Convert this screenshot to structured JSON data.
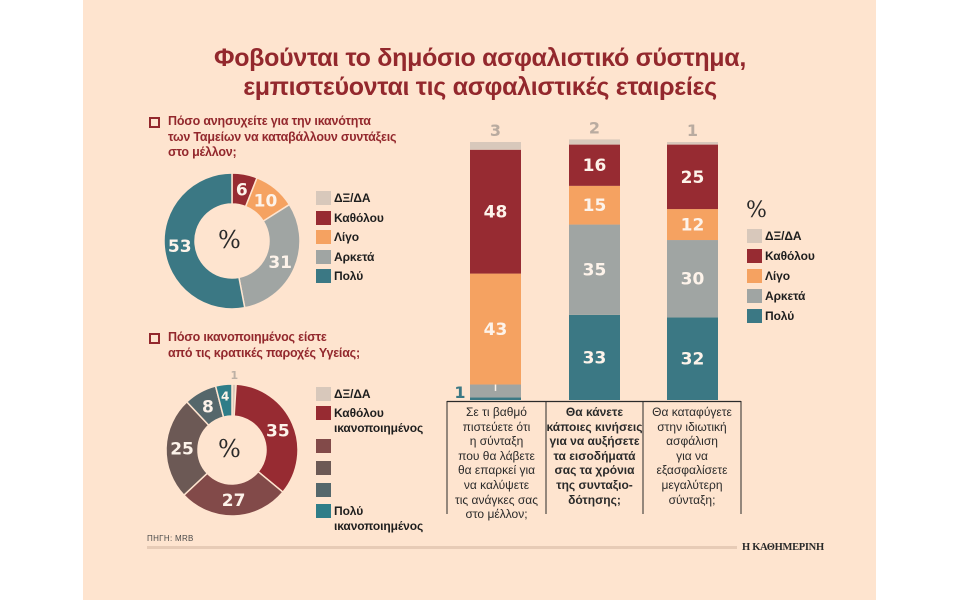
{
  "title_line1": "Φοβούνται το δημόσιο ασφαλιστικό σύστημα,",
  "title_line2": "εμπιστεύονται τις ασφαλιστικές εταιρείες",
  "source": "ΠΗΓΗ: MRB",
  "brand": "Η ΚΑΘΗΜΕΡΙΝΗ",
  "colors": {
    "dk_da": "#d8c8bb",
    "katholou": "#972b32",
    "ligo": "#f5a261",
    "arketa": "#a0a5a3",
    "poly": "#3b7884",
    "health_2": "#824a49",
    "health_3": "#6c5955",
    "health_4": "#55676b",
    "health_5": "#2f7d88"
  },
  "chart_data": [
    {
      "type": "pie",
      "variant": "donut",
      "title_lines": [
        "Πόσο ανησυχείτε για την ικανότητα",
        "των Ταμείων να καταβάλλουν συντάξεις",
        "στο μέλλον;"
      ],
      "center_label": "%",
      "slices": [
        {
          "label": "ΔΞ/ΔΑ",
          "value": 0,
          "color_key": "dk_da",
          "show_value": false
        },
        {
          "label": "Καθόλου",
          "value": 6,
          "color_key": "katholou",
          "show_value": true
        },
        {
          "label": "Λίγο",
          "value": 10,
          "color_key": "ligo",
          "show_value": true
        },
        {
          "label": "Αρκετά",
          "value": 31,
          "color_key": "arketa",
          "show_value": true
        },
        {
          "label": "Πολύ",
          "value": 53,
          "color_key": "poly",
          "show_value": true
        }
      ],
      "legend": [
        "ΔΞ/ΔΑ",
        "Καθόλου",
        "Λίγο",
        "Αρκετά",
        "Πολύ"
      ],
      "legend_placement": "right"
    },
    {
      "type": "pie",
      "variant": "donut",
      "title_lines": [
        "Πόσο ικανοποιημένος είστε",
        "από τις κρατικές παροχές Υγείας;"
      ],
      "center_label": "%",
      "slices": [
        {
          "label": "ΔΞ/ΔΑ",
          "value": 1,
          "color_key": "dk_da",
          "show_value": true
        },
        {
          "label": "Καθόλου ικανοποιημένος",
          "value": 35,
          "color_key": "katholou",
          "show_value": true
        },
        {
          "label": "",
          "value": 27,
          "color_key": "health_2",
          "show_value": true
        },
        {
          "label": "",
          "value": 25,
          "color_key": "health_3",
          "show_value": true
        },
        {
          "label": "",
          "value": 8,
          "color_key": "health_4",
          "show_value": true
        },
        {
          "label": "Πολύ ικανοποιημένος",
          "value": 4,
          "color_key": "health_5",
          "show_value": true
        }
      ],
      "legend": [
        {
          "lines": [
            "ΔΞ/ΔΑ"
          ],
          "color_key": "dk_da"
        },
        {
          "lines": [
            "Καθόλου",
            "ικανοποιημένος"
          ],
          "color_key": "katholou"
        },
        {
          "lines": [],
          "color_key": "health_2"
        },
        {
          "lines": [],
          "color_key": "health_3"
        },
        {
          "lines": [],
          "color_key": "health_4"
        },
        {
          "lines": [
            "Πολύ",
            "ικανοποιημένος"
          ],
          "color_key": "health_5"
        }
      ],
      "legend_placement": "right"
    },
    {
      "type": "bar",
      "stacked": true,
      "unit_label": "%",
      "categories": [
        {
          "lines": [
            "Σε τι βαθμό",
            "πιστεύετε ότι",
            "η σύνταξη",
            "που θα λάβετε",
            "θα επαρκεί για",
            "να καλύψετε",
            "τις ανάγκες σας",
            "στο μέλλον;"
          ],
          "bold": false
        },
        {
          "lines": [
            "Θα κάνετε",
            "κάποιες κινήσεις",
            "για να αυξήσετε",
            "τα εισοδήματά",
            "σας τα χρόνια",
            "της συνταξιο-",
            "δότησης;"
          ],
          "bold": true
        },
        {
          "lines": [
            "Θα καταφύγετε",
            "στην ιδιωτική",
            "ασφάλιση",
            "για να",
            "εξασφαλίσετε",
            "μεγαλύτερη",
            "σύνταξη;"
          ],
          "bold": false
        }
      ],
      "series": [
        {
          "name": "Πολύ",
          "color_key": "poly",
          "values": [
            1,
            33,
            32
          ]
        },
        {
          "name": "Αρκετά",
          "color_key": "arketa",
          "values": [
            5,
            35,
            30
          ]
        },
        {
          "name": "Λίγο",
          "color_key": "ligo",
          "values": [
            43,
            15,
            12
          ]
        },
        {
          "name": "Καθόλου",
          "color_key": "katholou",
          "values": [
            48,
            16,
            25
          ]
        },
        {
          "name": "ΔΞ/ΔΑ",
          "color_key": "dk_da",
          "values": [
            3,
            2,
            1
          ]
        }
      ],
      "legend": [
        "ΔΞ/ΔΑ",
        "Καθόλου",
        "Λίγο",
        "Αρκετά",
        "Πολύ"
      ],
      "legend_placement": "right",
      "ylim": [
        0,
        100
      ],
      "grid": false
    }
  ]
}
